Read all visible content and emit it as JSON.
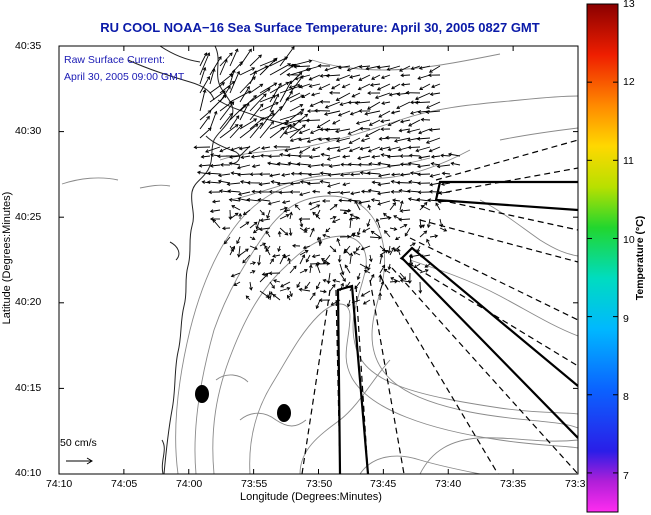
{
  "title": "RU COOL  NOAA−16  Sea Surface Temperature:  April 30, 2005 0827 GMT",
  "annotation": {
    "line1": "Raw Surface Current:",
    "line2": "April 30, 2005 09:00 GMT"
  },
  "scale": {
    "label": "50 cm/s"
  },
  "axes": {
    "xlabel": "Longitude (Degrees:Minutes)",
    "ylabel": "Latitude (Degrees:Minutes)",
    "xticks": [
      "74:10",
      "74:05",
      "74:00",
      "73:55",
      "73:50",
      "73:45",
      "73:40",
      "73:35",
      "73:3"
    ],
    "yticks": [
      "40:35",
      "40:30",
      "40:25",
      "40:20",
      "40:15",
      "40:10"
    ]
  },
  "colorbar": {
    "label": "Temperature (°C)",
    "ticks": [
      "13",
      "12",
      "11",
      "10",
      "9",
      "8",
      "7"
    ]
  },
  "colors": {
    "title": "#0a1aa8",
    "annotation": "#1a1ab4",
    "coastline": "#222222",
    "contours": "#8a8a8a"
  },
  "chart_data": {
    "type": "vector-field-map",
    "title": "RU COOL  NOAA-16  Sea Surface Temperature:  April 30, 2005 0827 GMT",
    "xlabel": "Longitude (Degrees:Minutes)",
    "ylabel": "Latitude (Degrees:Minutes)",
    "xlim": [
      "74:10",
      "73:30"
    ],
    "ylim": [
      "40:10",
      "40:35"
    ],
    "colorbar_range": [
      6.5,
      13
    ],
    "vector_scale_cm_s": 50
  }
}
